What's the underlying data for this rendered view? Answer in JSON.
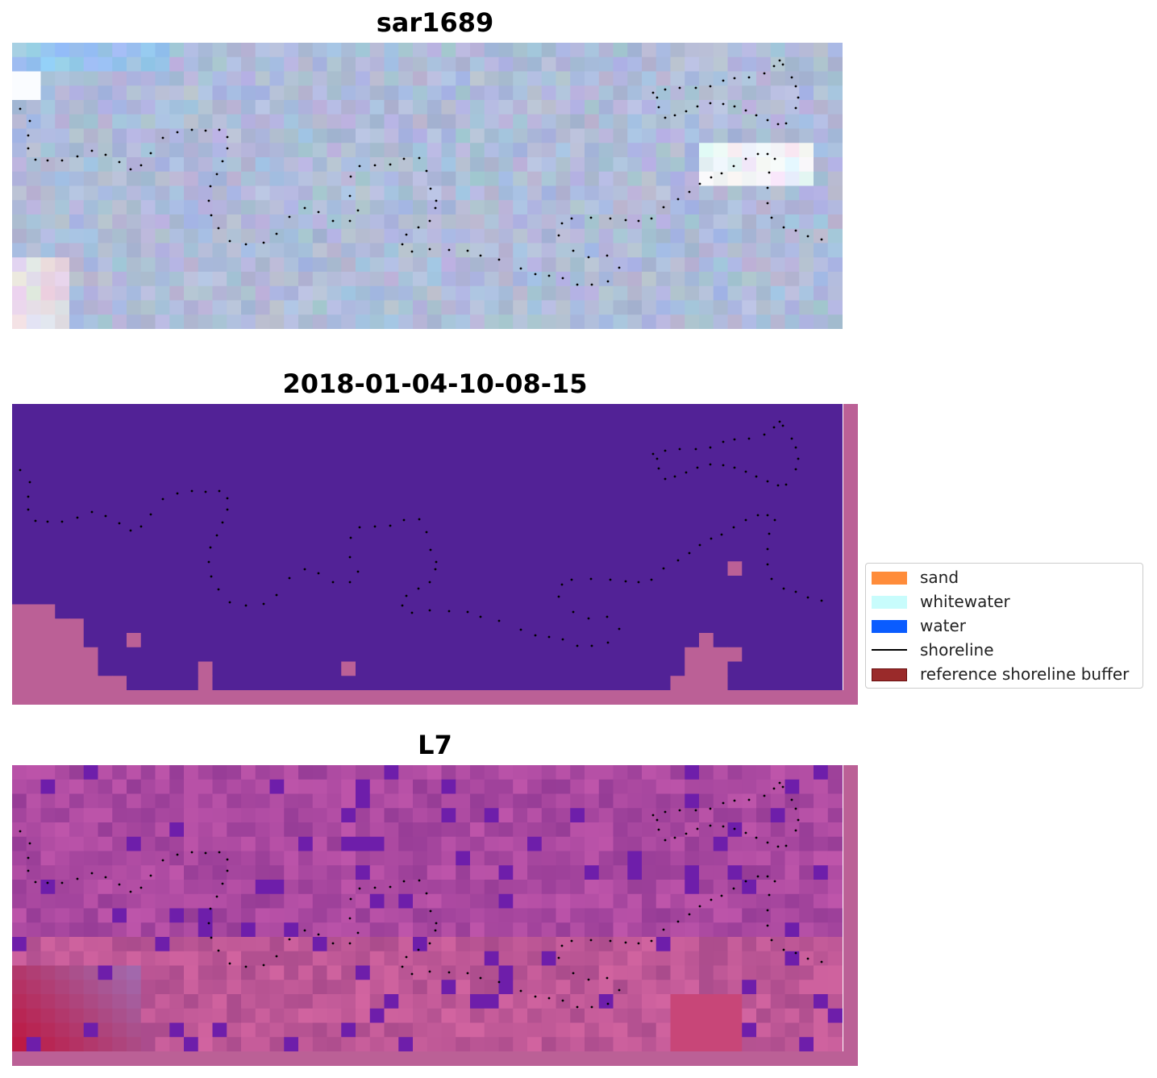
{
  "panels": [
    {
      "title": "sar1689",
      "kind": "rgb"
    },
    {
      "title": "2018-01-04-10-08-15",
      "kind": "classified"
    },
    {
      "title": "L7",
      "kind": "index"
    }
  ],
  "legend": {
    "items": [
      {
        "label": "sand",
        "color": "#ff8c3a",
        "type": "patch"
      },
      {
        "label": "whitewater",
        "color": "#c8fcfc",
        "type": "patch"
      },
      {
        "label": "water",
        "color": "#0a5cff",
        "type": "patch"
      },
      {
        "label": "shoreline",
        "color": "#000000",
        "type": "line"
      },
      {
        "label": "reference shoreline buffer",
        "color": "#9a2a2a",
        "type": "patch"
      }
    ]
  },
  "colors": {
    "classified_background": "#522296",
    "buffer_pink": "#bb6096",
    "rgb_base": "#a2b4d2",
    "index_base": "#a447a1"
  }
}
